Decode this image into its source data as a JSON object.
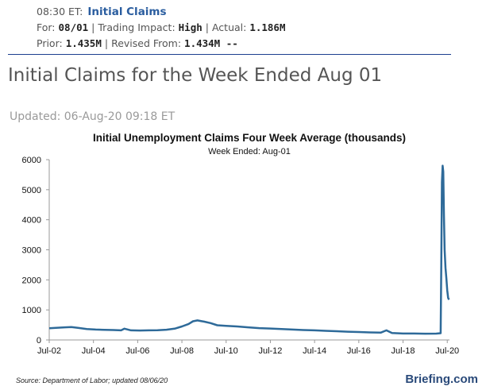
{
  "event": {
    "time": "08:30 ET:",
    "name": "Initial Claims",
    "for_label": "For:",
    "for_value": "08/01",
    "impact_label": "Trading Impact:",
    "impact_value": "High",
    "actual_label": "Actual:",
    "actual_value": "1.186M",
    "prior_label": "Prior:",
    "prior_value": "1.435M",
    "revised_label": "Revised From:",
    "revised_value": "1.434M --"
  },
  "headline": "Initial Claims for the Week Ended Aug 01",
  "updated": "Updated: 06-Aug-20 09:18 ET",
  "chart_data": {
    "type": "line",
    "title": "Initial Unemployment Claims Four Week Average (thousands)",
    "subtitle": "Week Ended: Aug-01",
    "xlabel": "",
    "ylabel": "",
    "ylim": [
      0,
      6000
    ],
    "yticks": [
      0,
      1000,
      2000,
      3000,
      4000,
      5000,
      6000
    ],
    "xticks": [
      "Jul-02",
      "Jul-04",
      "Jul-06",
      "Jul-08",
      "Jul-10",
      "Jul-12",
      "Jul-14",
      "Jul-16",
      "Jul-18",
      "Jul-20"
    ],
    "xlim": [
      2002.5,
      2020.6
    ],
    "grid": false,
    "color": "#2e6a99",
    "series": [
      {
        "x": [
          2002.5,
          2002.8,
          2003.2,
          2003.5,
          2003.8,
          2004.2,
          2004.6,
          2005.0,
          2005.4,
          2005.75,
          2005.9,
          2006.2,
          2006.6,
          2007.0,
          2007.4,
          2007.8,
          2008.2,
          2008.5,
          2008.8,
          2009.0,
          2009.2,
          2009.5,
          2009.8,
          2010.1,
          2010.5,
          2011.0,
          2011.5,
          2012.0,
          2012.5,
          2013.0,
          2013.5,
          2014.0,
          2014.5,
          2015.0,
          2015.5,
          2016.0,
          2016.5,
          2017.0,
          2017.5,
          2017.75,
          2018.0,
          2018.5,
          2019.0,
          2019.5,
          2020.0,
          2020.2,
          2020.23,
          2020.26,
          2020.29,
          2020.32,
          2020.35,
          2020.38,
          2020.42,
          2020.46,
          2020.5,
          2020.54,
          2020.58
        ],
        "values": [
          390,
          405,
          420,
          430,
          405,
          365,
          345,
          335,
          330,
          320,
          375,
          320,
          315,
          320,
          325,
          340,
          380,
          450,
          530,
          620,
          650,
          610,
          560,
          490,
          470,
          450,
          420,
          395,
          380,
          365,
          345,
          330,
          320,
          305,
          290,
          275,
          265,
          250,
          245,
          320,
          230,
          215,
          215,
          210,
          212,
          225,
          2500,
          5250,
          5800,
          5600,
          4200,
          3000,
          2400,
          2050,
          1650,
          1400,
          1340
        ]
      }
    ],
    "source": "Source: Department of Labor; updated 08/06/20",
    "brand": "Briefing.com"
  }
}
